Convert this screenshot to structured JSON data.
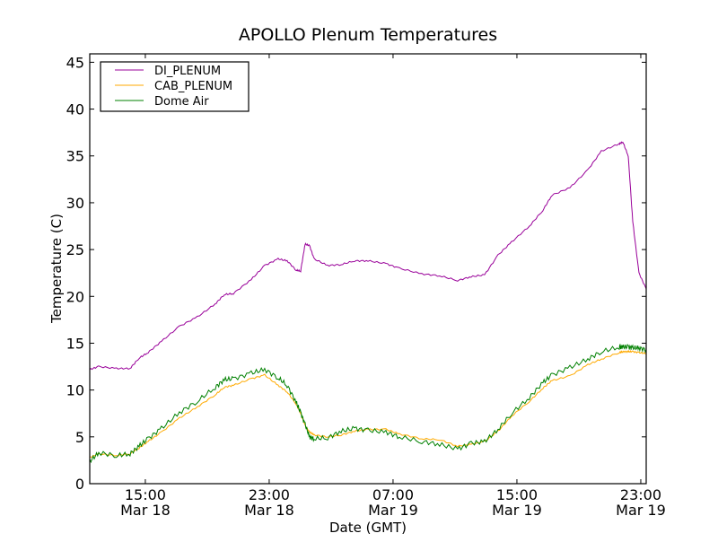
{
  "chart_data": {
    "type": "line",
    "title": "APOLLO Plenum Temperatures",
    "xlabel": "Date (GMT)",
    "ylabel": "Temperature (C)",
    "x_units": "hours since Mar 18 00:00 GMT",
    "xlim": [
      11.41,
      47.35
    ],
    "ylim": [
      0,
      45.9
    ],
    "yticks": [
      0,
      5,
      10,
      15,
      20,
      25,
      30,
      35,
      40,
      45
    ],
    "xticks": [
      {
        "value": 15,
        "time": "15:00",
        "date": "Mar 18"
      },
      {
        "value": 23,
        "time": "23:00",
        "date": "Mar 18"
      },
      {
        "value": 31,
        "time": "07:00",
        "date": "Mar 19"
      },
      {
        "value": 39,
        "time": "15:00",
        "date": "Mar 19"
      },
      {
        "value": 47,
        "time": "23:00",
        "date": "Mar 19"
      }
    ],
    "grid": false,
    "legend_position": "top-left",
    "x": [
      11.41,
      11.99,
      13.14,
      14.01,
      14.59,
      15.17,
      16.04,
      17.2,
      18.36,
      19.52,
      20.1,
      20.68,
      21.84,
      22.71,
      23.58,
      24.16,
      24.74,
      25.03,
      25.32,
      25.61,
      25.9,
      26.77,
      27.64,
      28.51,
      29.38,
      30.54,
      31.41,
      32.86,
      34.01,
      35.17,
      36.04,
      36.91,
      37.78,
      38.65,
      39.81,
      40.68,
      41.26,
      42.42,
      43.58,
      44.45,
      45.61,
      45.84,
      46.19,
      46.48,
      46.88,
      47.35
    ],
    "series": [
      {
        "name": "DI_PLENUM",
        "color": "#990099",
        "values": [
          12.2,
          12.5,
          12.3,
          12.3,
          13.4,
          14.0,
          15.2,
          16.8,
          17.8,
          19.2,
          20.2,
          20.3,
          21.8,
          23.3,
          24.0,
          23.8,
          22.8,
          22.7,
          25.6,
          25.4,
          24.0,
          23.3,
          23.4,
          23.8,
          23.8,
          23.5,
          23.0,
          22.4,
          22.2,
          21.7,
          22.1,
          22.3,
          24.4,
          25.8,
          27.5,
          29.2,
          30.8,
          31.6,
          33.5,
          35.5,
          36.3,
          36.5,
          35.0,
          28.0,
          22.5,
          20.8
        ]
      },
      {
        "name": "CAB_PLENUM",
        "color": "#ffaa00",
        "values": [
          2.8,
          3.2,
          3.0,
          3.2,
          3.8,
          4.5,
          5.5,
          7.0,
          8.2,
          9.5,
          10.3,
          10.5,
          11.2,
          11.6,
          10.5,
          9.8,
          8.5,
          7.5,
          6.2,
          5.5,
          5.2,
          5.0,
          5.2,
          5.6,
          5.8,
          5.8,
          5.3,
          4.8,
          4.7,
          4.0,
          4.2,
          4.5,
          5.6,
          7.2,
          8.8,
          10.2,
          11.0,
          11.5,
          12.7,
          13.3,
          14.0,
          14.1,
          14.1,
          14.1,
          14.0,
          13.9
        ]
      },
      {
        "name": "Dome Air",
        "color": "#008000",
        "values": [
          2.4,
          3.3,
          3.0,
          3.2,
          4.0,
          4.8,
          5.9,
          7.6,
          8.8,
          10.3,
          11.1,
          11.2,
          11.8,
          12.2,
          11.3,
          10.5,
          8.7,
          7.6,
          6.3,
          5.0,
          4.8,
          4.9,
          5.6,
          5.9,
          5.7,
          5.5,
          5.0,
          4.5,
          4.2,
          3.7,
          4.3,
          4.5,
          5.8,
          7.5,
          9.2,
          10.8,
          11.6,
          12.4,
          13.3,
          14.1,
          14.6,
          14.6,
          14.6,
          14.5,
          14.5,
          14.3
        ]
      }
    ]
  }
}
